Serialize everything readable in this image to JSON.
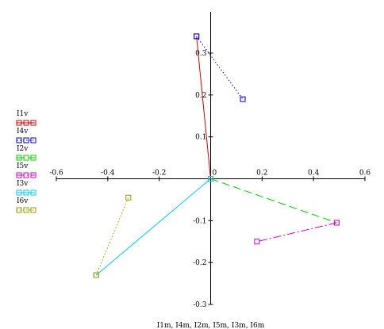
{
  "chart_data": {
    "type": "scatter",
    "xlabel": "I1m, I4m, I2m, I5m, I3m, I6m",
    "ylabel": "",
    "xlim": [
      -0.6,
      0.6
    ],
    "ylim": [
      -0.3,
      0.3
    ],
    "x_ticks": [
      -0.6,
      -0.4,
      -0.2,
      0,
      0.2,
      0.4,
      0.6
    ],
    "y_ticks": [
      -0.3,
      -0.2,
      -0.1,
      0.1,
      0.2,
      0.3
    ],
    "x_tick_labels": [
      "-0.6",
      "-0.4",
      "-0.2",
      "0",
      "0.2",
      "0.4",
      "0.6"
    ],
    "y_tick_labels": [
      "-0.3",
      "-0.2",
      "-0.1",
      "0.1",
      "0.2",
      "0.3"
    ],
    "grid": false,
    "legend_position": "left",
    "series": [
      {
        "name": "I1v",
        "color": "#cc0000",
        "dash": "solid",
        "x": [
          0,
          -0.055
        ],
        "y": [
          0,
          0.34
        ]
      },
      {
        "name": "I4v",
        "color": "#0000cc",
        "dash": "dotted",
        "x": [
          -0.055,
          0.125
        ],
        "y": [
          0.34,
          0.19
        ]
      },
      {
        "name": "I2v",
        "color": "#00cc00",
        "dash": "dashed",
        "x": [
          0,
          0.49
        ],
        "y": [
          0,
          -0.105
        ]
      },
      {
        "name": "I5v",
        "color": "#cc00cc",
        "dash": "dashdot",
        "x": [
          0.49,
          0.18
        ],
        "y": [
          -0.105,
          -0.15
        ]
      },
      {
        "name": "I3v",
        "color": "#00ccee",
        "dash": "solid",
        "x": [
          0,
          -0.445
        ],
        "y": [
          0,
          -0.23
        ]
      },
      {
        "name": "I6v",
        "color": "#999900",
        "dash": "dotted",
        "x": [
          -0.445,
          -0.32
        ],
        "y": [
          -0.23,
          -0.045
        ]
      }
    ]
  }
}
